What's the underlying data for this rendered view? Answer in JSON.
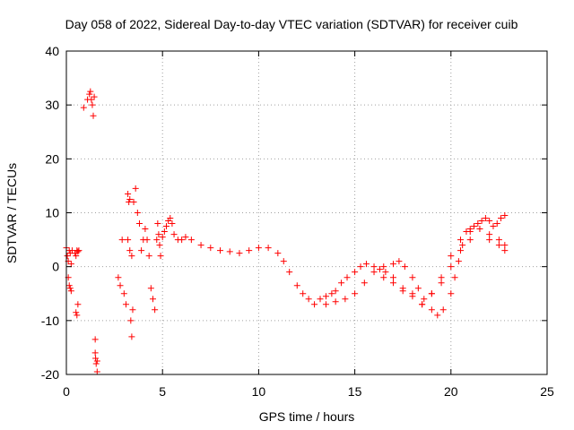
{
  "chart_data": {
    "type": "scatter",
    "title": "Day 058 of 2022, Sidereal Day-to-day VTEC variation (SDTVAR) for receiver cuib",
    "xlabel": "GPS time / hours",
    "ylabel": "SDTVAR / TECUs",
    "xlim": [
      0,
      25
    ],
    "ylim": [
      -20,
      40
    ],
    "xticks": [
      0,
      5,
      10,
      15,
      20,
      25
    ],
    "yticks": [
      -20,
      -10,
      0,
      10,
      20,
      30,
      40
    ],
    "grid": true,
    "marker": "+",
    "color": "#ff0000",
    "series": [
      {
        "name": "SDTVAR",
        "x": [
          0.0,
          0.05,
          0.1,
          0.15,
          0.2,
          0.25,
          0.1,
          0.15,
          0.2,
          0.25,
          0.3,
          0.45,
          0.5,
          0.55,
          0.6,
          0.65,
          0.5,
          0.55,
          0.6,
          0.9,
          1.1,
          1.2,
          1.25,
          1.3,
          1.35,
          1.4,
          1.45,
          1.5,
          1.5,
          1.52,
          1.55,
          1.6,
          1.6,
          2.7,
          2.8,
          2.9,
          3.0,
          3.1,
          3.2,
          3.25,
          3.3,
          3.35,
          3.4,
          3.45,
          3.2,
          3.3,
          3.4,
          3.5,
          3.6,
          3.7,
          3.8,
          3.9,
          4.0,
          4.1,
          4.2,
          4.3,
          4.4,
          4.5,
          4.6,
          4.7,
          4.75,
          4.8,
          4.85,
          4.9,
          5.0,
          5.1,
          5.2,
          5.3,
          5.4,
          5.5,
          5.6,
          5.8,
          6.0,
          6.2,
          6.5,
          7.0,
          7.5,
          8.0,
          8.5,
          9.0,
          9.5,
          10.0,
          10.5,
          11.0,
          11.3,
          11.6,
          12.0,
          12.3,
          12.6,
          12.9,
          13.2,
          13.5,
          13.8,
          14.0,
          14.3,
          14.6,
          15.0,
          15.3,
          15.6,
          16.0,
          16.3,
          16.6,
          17.0,
          17.3,
          17.6,
          18.0,
          18.3,
          18.6,
          19.0,
          19.3,
          19.6,
          20.0,
          20.2,
          20.4,
          20.6,
          20.8,
          21.0,
          21.2,
          21.4,
          21.6,
          21.8,
          22.0,
          22.2,
          22.4,
          22.6,
          22.8,
          13.5,
          14.0,
          14.5,
          15.0,
          15.5,
          16.0,
          16.5,
          17.0,
          17.5,
          18.0,
          18.5,
          19.0,
          19.5,
          20.0,
          20.5,
          21.0,
          21.5,
          22.0,
          22.5,
          22.8,
          16.5,
          17.0,
          17.5,
          18.0,
          18.5,
          19.0,
          19.5,
          20.0,
          20.5,
          21.0,
          21.5,
          22.0,
          22.5,
          22.8
        ],
        "y": [
          3.5,
          2.0,
          -2.0,
          -3.5,
          -4.0,
          -4.5,
          1.0,
          3.0,
          2.5,
          0.5,
          3.0,
          2.5,
          -8.5,
          -9.0,
          -7.0,
          3.0,
          2.0,
          3.0,
          2.8,
          29.5,
          31.0,
          32.0,
          32.5,
          31.0,
          30.0,
          28.0,
          31.5,
          -13.5,
          -16.0,
          -17.0,
          -18.0,
          -19.5,
          -17.5,
          -2.0,
          -3.5,
          5.0,
          -5.0,
          -7.0,
          13.5,
          12.0,
          12.5,
          -10.0,
          -13.0,
          -8.0,
          5.0,
          3.0,
          2.0,
          12.0,
          14.5,
          10.0,
          8.0,
          3.0,
          5.0,
          7.0,
          5.0,
          2.0,
          -4.0,
          -6.0,
          -8.0,
          5.0,
          8.0,
          6.0,
          4.0,
          2.0,
          5.5,
          6.5,
          7.5,
          8.5,
          9.0,
          8.0,
          6.0,
          5.0,
          5.0,
          5.5,
          5.0,
          4.0,
          3.5,
          3.0,
          2.8,
          2.5,
          3.0,
          3.5,
          3.5,
          2.5,
          1.0,
          -1.0,
          -3.5,
          -5.0,
          -6.0,
          -7.0,
          -6.0,
          -5.5,
          -5.0,
          -4.5,
          -3.0,
          -2.0,
          -1.0,
          0.0,
          0.5,
          0.0,
          -0.5,
          -1.0,
          0.5,
          1.0,
          0.0,
          -2.0,
          -4.0,
          -6.0,
          -8.0,
          -9.0,
          -8.0,
          -5.0,
          -2.0,
          1.0,
          4.0,
          6.5,
          7.0,
          7.5,
          8.0,
          8.5,
          9.0,
          8.5,
          7.5,
          8.0,
          9.0,
          9.5,
          -7.0,
          -6.5,
          -6.0,
          -5.0,
          -3.0,
          -1.0,
          0.0,
          -2.0,
          -4.0,
          -5.0,
          -7.0,
          -5.0,
          -2.0,
          2.0,
          5.0,
          6.5,
          7.0,
          5.0,
          4.0,
          3.0,
          -2.0,
          -3.0,
          -4.5,
          -5.5,
          -7.0,
          -5.0,
          -3.0,
          0.0,
          3.0,
          5.0,
          7.0,
          6.0,
          5.0,
          4.0
        ]
      }
    ]
  }
}
